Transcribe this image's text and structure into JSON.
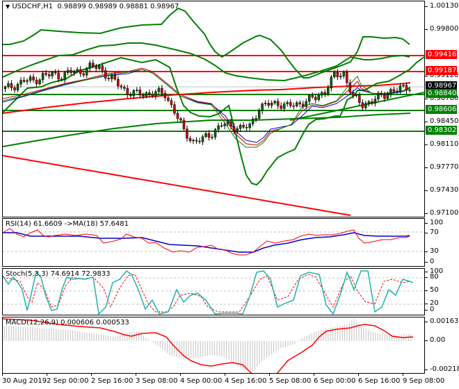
{
  "header": {
    "dropdown_icon": "triangle-down-icon",
    "symbol": "USDCHF,H1",
    "ohlc": "0.98899 0.98989 0.98881 0.98967"
  },
  "main_axis": {
    "ticks": [
      "1.00130",
      "0.99800",
      "0.99120",
      "0.98780",
      "0.98450",
      "0.98110",
      "0.97770",
      "0.97430",
      "0.97100"
    ],
    "labels": [
      {
        "value": "0.99416",
        "color": "#ff0000",
        "text_color": "#ffffff"
      },
      {
        "value": "0.99187",
        "color": "#ff0000",
        "text_color": "#ffffff"
      },
      {
        "value": "0.98967",
        "color": "#000000",
        "text_color": "#ffffff"
      },
      {
        "value": "0.98840",
        "color": "#008000",
        "text_color": "#ffffff"
      },
      {
        "value": "0.98606",
        "color": "#008000",
        "text_color": "#ffffff"
      },
      {
        "value": "0.98302",
        "color": "#008000",
        "text_color": "#ffffff"
      }
    ]
  },
  "rsi": {
    "title": "RSI(14) 61.6609  ->MA(18) 57.6481",
    "ticks": [
      "100",
      "70",
      "30",
      "0"
    ]
  },
  "stoch": {
    "title": "Stoch(5,3,3) 74.6914 72.9833",
    "ticks": [
      "100",
      "80",
      "50",
      "20",
      "0"
    ]
  },
  "macd": {
    "title": "MACD(12,26,9) 0.000606 0.000533",
    "ticks": [
      "0.001636",
      "0.00",
      "-0.002189"
    ]
  },
  "x_axis": {
    "ticks": [
      "30 Aug 2019",
      "2 Sep 00:00",
      "2 Sep 16:00",
      "3 Sep 08:00",
      "4 Sep 00:00",
      "4 Sep 16:00",
      "5 Sep 08:00",
      "6 Sep 00:00",
      "6 Sep 16:00",
      "9 Sep 08:00"
    ]
  },
  "colors": {
    "bull_candle": "#006400",
    "bear_candle": "#cc0000",
    "resistance": "#ff0000",
    "support": "#008000",
    "bollinger": "#008000",
    "rsi_line": "#ff0000",
    "rsi_ma": "#0000cc",
    "stoch_main": "#20b2aa",
    "stoch_signal": "#ff0000",
    "macd_hist": "#c0c0c0",
    "macd_signal": "#ff0000"
  },
  "chart_data": [
    {
      "type": "candlestick",
      "title": "USDCHF,H1",
      "ohlc_last": {
        "open": 0.98899,
        "high": 0.98989,
        "low": 0.98881,
        "close": 0.98967
      },
      "ylim": [
        0.971,
        1.0013
      ],
      "x_ticks": [
        "30 Aug 2019",
        "2 Sep 00:00",
        "2 Sep 16:00",
        "3 Sep 08:00",
        "4 Sep 00:00",
        "4 Sep 16:00",
        "5 Sep 08:00",
        "6 Sep 00:00",
        "6 Sep 16:00",
        "9 Sep 08:00"
      ],
      "close_approx": [
        0.9893,
        0.9898,
        0.9905,
        0.9905,
        0.9912,
        0.9914,
        0.9912,
        0.9918,
        0.9918,
        0.9925,
        0.9925,
        0.991,
        0.99,
        0.9888,
        0.9885,
        0.9886,
        0.9887,
        0.9885,
        0.986,
        0.983,
        0.9815,
        0.9818,
        0.9828,
        0.984,
        0.9838,
        0.9835,
        0.9837,
        0.9865,
        0.987,
        0.9872,
        0.9867,
        0.987,
        0.9875,
        0.988,
        0.989,
        0.9912,
        0.9916,
        0.988,
        0.987,
        0.9875,
        0.9882,
        0.989,
        0.9892,
        0.9897
      ],
      "horizontal_levels": [
        {
          "value": 0.99416,
          "color": "red",
          "role": "resistance"
        },
        {
          "value": 0.99187,
          "color": "red",
          "role": "resistance"
        },
        {
          "value": 0.9884,
          "color": "green",
          "role": "support"
        },
        {
          "value": 0.98606,
          "color": "green",
          "role": "support"
        },
        {
          "value": 0.98302,
          "color": "green",
          "role": "support"
        }
      ],
      "trendlines": [
        {
          "from": [
            0,
            0.9797
          ],
          "to": [
            500,
            0.9709
          ],
          "color": "red"
        },
        {
          "from": [
            415,
            0.982
          ],
          "to": [
            610,
            0.9893
          ],
          "color": "green"
        }
      ],
      "overlays": [
        "Bollinger Bands (green)",
        "Moving averages (red, blue, green thin)",
        "Long MA (red thick)",
        "Long MA (green thick)"
      ]
    },
    {
      "type": "line",
      "title": "RSI(14) 61.6609 ->MA(18) 57.6481",
      "ylim": [
        0,
        100
      ],
      "levels": [
        70,
        30
      ],
      "series": [
        {
          "name": "RSI(14)",
          "last": 61.6609,
          "values": [
            66,
            68,
            62,
            64,
            60,
            61,
            60,
            55,
            58,
            64,
            58,
            48,
            44,
            47,
            50,
            44,
            42,
            36,
            37,
            45,
            60,
            62,
            65,
            66,
            68,
            74,
            58,
            55,
            58,
            60,
            62
          ]
        },
        {
          "name": "MA(18)",
          "last": 57.6481,
          "values": [
            66,
            65,
            63,
            62,
            62,
            61,
            60,
            60,
            59,
            57,
            54,
            51,
            49,
            48,
            46,
            44,
            42,
            40,
            40,
            44,
            48,
            52,
            55,
            57,
            59,
            60,
            60,
            58,
            57,
            57,
            57.6
          ]
        }
      ]
    },
    {
      "type": "line",
      "title": "Stoch(5,3,3) 74.6914 72.9833",
      "ylim": [
        0,
        100
      ],
      "levels": [
        80,
        50,
        20
      ],
      "series": [
        {
          "name": "%K",
          "last": 74.6914
        },
        {
          "name": "%D",
          "last": 72.9833
        }
      ]
    },
    {
      "type": "bar",
      "title": "MACD(12,26,9) 0.000606 0.000533",
      "ylim": [
        -0.002189,
        0.001636
      ],
      "series": [
        {
          "name": "MACD histogram",
          "last": 0.000606
        },
        {
          "name": "Signal",
          "last": 0.000533
        }
      ]
    }
  ]
}
